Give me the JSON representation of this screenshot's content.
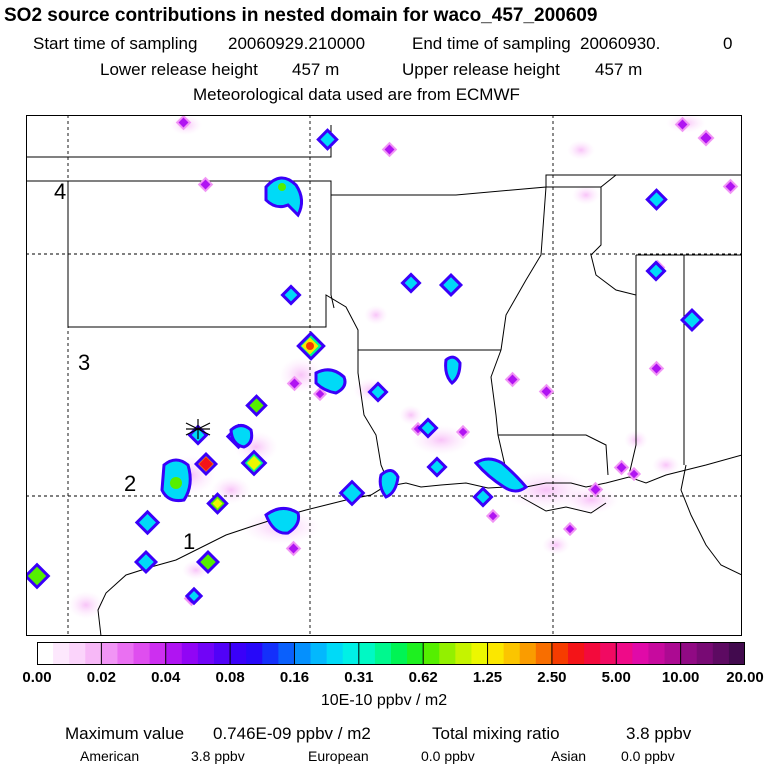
{
  "title": "SO2 source contributions in nested domain for waco_457_200609",
  "header": {
    "start_label": "Start time of sampling",
    "start_value": "20060929.210000",
    "end_label": "End time of sampling",
    "end_value": "20060930.",
    "end_suffix": "0",
    "lower_label": "Lower release height",
    "lower_value": "457 m",
    "upper_label": "Upper release height",
    "upper_value": "457 m",
    "met_text": "Meteorological data used are from ECMWF"
  },
  "map": {
    "region_labels": [
      "1",
      "2",
      "3",
      "4"
    ]
  },
  "colorbar": {
    "ticks": [
      "0.00",
      "0.02",
      "0.04",
      "0.08",
      "0.16",
      "0.31",
      "0.62",
      "1.25",
      "2.50",
      "5.00",
      "10.00",
      "20.00"
    ],
    "units": "10E-10 ppbv / m2",
    "colors": [
      "#ffffff",
      "#fde8fd",
      "#fbd4fb",
      "#f7b8f7",
      "#f195f5",
      "#ea70f2",
      "#df4eef",
      "#cd2ff0",
      "#b014f2",
      "#9105f5",
      "#7104f7",
      "#5102f8",
      "#3a00f9",
      "#2708f9",
      "#1430fb",
      "#0a60fc",
      "#0590fd",
      "#03b8fd",
      "#00daf7",
      "#00f0e6",
      "#00f9c4",
      "#00f88e",
      "#00f454",
      "#1ef020",
      "#55ef00",
      "#93f000",
      "#c5f300",
      "#ecf700",
      "#fbe700",
      "#fbc500",
      "#fa9c00",
      "#f86e00",
      "#f63c00",
      "#f41418",
      "#f30a3c",
      "#f10a62",
      "#ef0a88",
      "#e00aa8",
      "#c70a9e",
      "#ac0a92",
      "#910a84",
      "#780a74",
      "#5d0a62",
      "#420a4e"
    ]
  },
  "footer": {
    "max_label": "Maximum value",
    "max_value": "0.746E-09 ppbv / m2",
    "total_label": "Total mixing ratio",
    "total_value": "3.8 ppbv",
    "american_label": "American",
    "american_value": "3.8 ppbv",
    "european_label": "European",
    "european_value": "0.0 ppbv",
    "asian_label": "Asian",
    "asian_value": "0.0 ppbv"
  }
}
